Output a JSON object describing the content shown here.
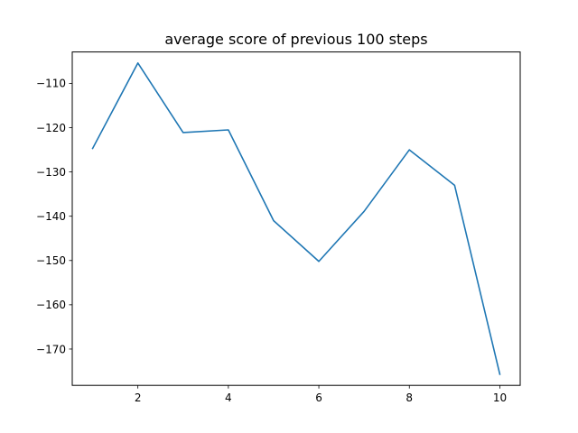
{
  "chart_data": {
    "type": "line",
    "title": "average score of previous 100 steps",
    "xlabel": "",
    "ylabel": "",
    "x": [
      1,
      2,
      3,
      4,
      5,
      6,
      7,
      8,
      9,
      10
    ],
    "series": [
      {
        "values": [
          -124.7,
          -105.4,
          -121.1,
          -120.5,
          -141.0,
          -150.2,
          -138.9,
          -125.0,
          -133.0,
          -175.7
        ]
      }
    ],
    "xlim": [
      0.55,
      10.45
    ],
    "ylim": [
      -178.2,
      -102.9
    ],
    "xticks": [
      2,
      4,
      6,
      8,
      10
    ],
    "xtick_labels": [
      "2",
      "4",
      "6",
      "8",
      "10"
    ],
    "yticks": [
      -110,
      -120,
      -130,
      -140,
      -150,
      -160,
      -170
    ],
    "ytick_labels": [
      "−110",
      "−120",
      "−130",
      "−140",
      "−150",
      "−160",
      "−170"
    ],
    "line_color": "#1f77b4",
    "grid": false,
    "legend": "none"
  }
}
